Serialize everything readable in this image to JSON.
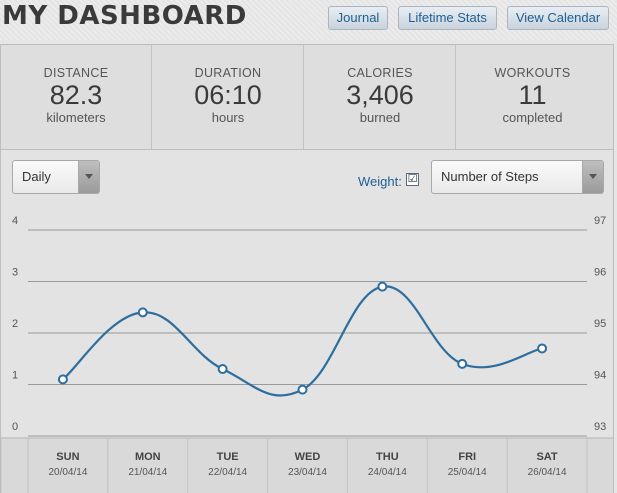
{
  "header": {
    "title": "MY DASHBOARD",
    "nav": [
      "Journal",
      "Lifetime Stats",
      "View Calendar"
    ]
  },
  "stats": [
    {
      "label": "DISTANCE",
      "value": "82.3",
      "unit": "kilometers"
    },
    {
      "label": "DURATION",
      "value": "06:10",
      "unit": "hours"
    },
    {
      "label": "CALORIES",
      "value": "3,406",
      "unit": "burned"
    },
    {
      "label": "WORKOUTS",
      "value": "11",
      "unit": "completed"
    }
  ],
  "controls": {
    "period": "Daily",
    "weight_label": "Weight:",
    "weight_checked": "☑",
    "metric": "Number of Steps"
  },
  "colors": {
    "line": "#2e6e9e",
    "accent": "#1e5f93"
  },
  "chart_data": {
    "type": "line",
    "left_axis": {
      "ticks": [
        "0",
        "1",
        "2",
        "3",
        "4"
      ],
      "range": [
        0,
        4
      ]
    },
    "right_axis": {
      "ticks": [
        "93",
        "94",
        "95",
        "96",
        "97"
      ],
      "range": [
        93,
        97
      ]
    },
    "grid": true,
    "days": [
      "SUN",
      "MON",
      "TUE",
      "WED",
      "THU",
      "FRI",
      "SAT"
    ],
    "dates": [
      "20/04/14",
      "21/04/14",
      "22/04/14",
      "23/04/14",
      "24/04/14",
      "25/04/14",
      "26/04/14"
    ],
    "values": [
      1.1,
      2.4,
      1.3,
      0.9,
      2.9,
      1.4,
      1.7
    ]
  }
}
